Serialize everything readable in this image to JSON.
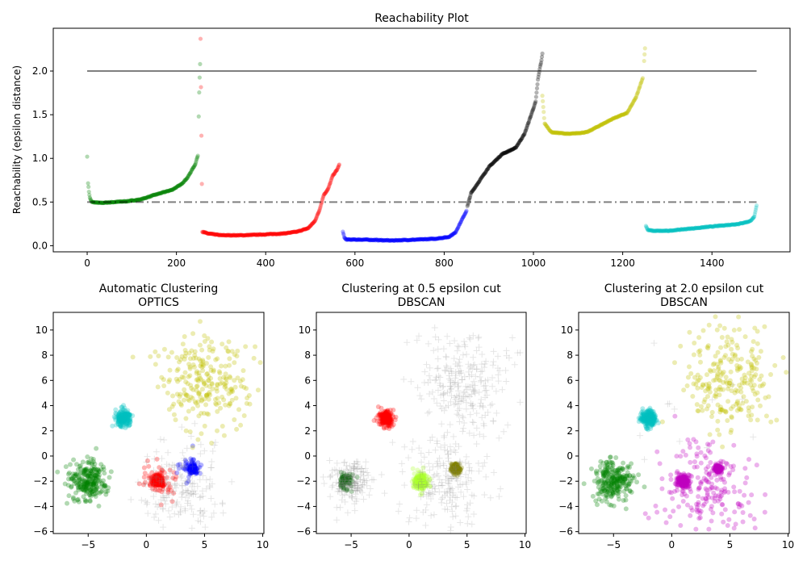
{
  "chart_data": [
    {
      "type": "scatter",
      "title": "Reachability Plot",
      "xlabel": "",
      "ylabel": "Reachability (epsilon distance)",
      "xlim": [
        -76,
        1575
      ],
      "ylim": [
        -0.07,
        2.49
      ],
      "xticks": [
        0,
        200,
        400,
        600,
        800,
        1000,
        1200,
        1400
      ],
      "yticks": [
        0.0,
        0.5,
        1.0,
        1.5,
        2.0
      ],
      "hlines": [
        {
          "y": 2.0,
          "style": "solid"
        },
        {
          "y": 0.5,
          "style": "dashdot"
        }
      ],
      "series": [
        {
          "color": "#008000",
          "x": [
            0,
            2,
            4,
            6,
            10,
            30,
            60,
            90,
            120,
            150,
            170,
            190,
            210,
            225,
            235,
            242,
            246,
            248,
            250,
            251,
            252,
            253
          ],
          "y": [
            1.02,
            0.72,
            0.62,
            0.55,
            0.5,
            0.49,
            0.5,
            0.51,
            0.53,
            0.58,
            0.61,
            0.64,
            0.7,
            0.78,
            0.87,
            0.93,
            1.0,
            1.03,
            1.48,
            1.75,
            1.93,
            2.08
          ]
        },
        {
          "color": "#ff0000",
          "x": [
            254,
            258,
            270,
            300,
            350,
            400,
            440,
            470,
            495,
            510,
            520,
            530,
            540,
            550,
            560,
            565
          ],
          "y": [
            2.37,
            0.16,
            0.14,
            0.12,
            0.12,
            0.13,
            0.14,
            0.16,
            0.2,
            0.28,
            0.4,
            0.58,
            0.65,
            0.8,
            0.87,
            0.93
          ]
        },
        {
          "color": "#0000ff",
          "x": [
            573,
            576,
            580,
            620,
            680,
            740,
            780,
            810,
            825,
            835,
            845,
            850
          ],
          "y": [
            0.16,
            0.1,
            0.07,
            0.07,
            0.06,
            0.07,
            0.08,
            0.1,
            0.15,
            0.25,
            0.35,
            0.4
          ]
        },
        {
          "color": "#000000",
          "x": [
            852,
            860,
            880,
            900,
            930,
            960,
            980,
            995,
            1005,
            1010,
            1015,
            1018,
            1020
          ],
          "y": [
            0.45,
            0.6,
            0.75,
            0.9,
            1.05,
            1.12,
            1.28,
            1.5,
            1.65,
            1.9,
            2.05,
            2.12,
            2.2
          ]
        },
        {
          "color": "#bfbf00",
          "x": [
            1020,
            1025,
            1040,
            1080,
            1120,
            1150,
            1180,
            1210,
            1230,
            1240,
            1245,
            1248,
            1250
          ],
          "y": [
            1.72,
            1.4,
            1.3,
            1.28,
            1.3,
            1.38,
            1.46,
            1.52,
            1.7,
            1.85,
            1.92,
            2.12,
            2.26
          ]
        },
        {
          "color": "#00bfbf",
          "x": [
            1252,
            1256,
            1270,
            1300,
            1340,
            1380,
            1420,
            1460,
            1485,
            1495,
            1500
          ],
          "y": [
            0.23,
            0.18,
            0.17,
            0.17,
            0.19,
            0.21,
            0.23,
            0.25,
            0.28,
            0.33,
            0.46
          ]
        }
      ]
    },
    {
      "type": "scatter",
      "title": "Automatic Clustering\nOPTICS",
      "xlim": [
        -8,
        10.1
      ],
      "ylim": [
        -6.15,
        11.4
      ],
      "xticks": [
        -5,
        0,
        5,
        10
      ],
      "yticks": [
        -6,
        -4,
        -2,
        0,
        2,
        4,
        6,
        8,
        10
      ],
      "clusters": [
        {
          "color": "#008000",
          "center": [
            -5,
            -2
          ],
          "std": 0.8,
          "n": 250
        },
        {
          "color": "#00bfbf",
          "center": [
            -2,
            3
          ],
          "std": 0.3,
          "n": 200
        },
        {
          "color": "#ff0000",
          "center": [
            1,
            -2
          ],
          "std": 0.25,
          "n": 200
        },
        {
          "color": "#ff0000",
          "center": [
            1,
            -2
          ],
          "std": 0.8,
          "n": 50
        },
        {
          "color": "#0000ff",
          "center": [
            4,
            -1
          ],
          "std": 0.15,
          "n": 150
        },
        {
          "color": "#0000ff",
          "center": [
            3.7,
            -1
          ],
          "std": 0.5,
          "n": 40
        },
        {
          "color": "#bfbf00",
          "center": [
            5,
            6
          ],
          "std": 2,
          "n": 250
        },
        {
          "color": "#808080",
          "center": [
            3,
            -2.5
          ],
          "std": 1.8,
          "n": 180,
          "marker": "+"
        }
      ]
    },
    {
      "type": "scatter",
      "title": "Clustering at 0.5 epsilon cut\nDBSCAN",
      "xlim": [
        -8,
        10.1
      ],
      "ylim": [
        -6.15,
        11.4
      ],
      "xticks": [
        -5,
        0,
        5,
        10
      ],
      "yticks": [
        -6,
        -4,
        -2,
        0,
        2,
        4,
        6,
        8,
        10
      ],
      "clusters": [
        {
          "color": "#006400",
          "center": [
            -5.5,
            -2
          ],
          "std": 0.3,
          "n": 80
        },
        {
          "color": "#ff0000",
          "center": [
            -2,
            3
          ],
          "std": 0.3,
          "n": 200
        },
        {
          "color": "#adff2f",
          "center": [
            1,
            -2
          ],
          "std": 0.3,
          "n": 200
        },
        {
          "color": "#808000",
          "center": [
            4,
            -1
          ],
          "std": 0.2,
          "n": 150
        },
        {
          "color": "#808080",
          "center": [
            -5,
            -2
          ],
          "std": 0.9,
          "n": 170,
          "marker": "+"
        },
        {
          "color": "#808080",
          "center": [
            5,
            6
          ],
          "std": 2,
          "n": 250,
          "marker": "+"
        },
        {
          "color": "#808080",
          "center": [
            3,
            -2.5
          ],
          "std": 1.8,
          "n": 200,
          "marker": "+"
        }
      ]
    },
    {
      "type": "scatter",
      "title": "Clustering at 2.0 epsilon cut\nDBSCAN",
      "xlim": [
        -8,
        10.1
      ],
      "ylim": [
        -6.15,
        11.4
      ],
      "xticks": [
        -5,
        0,
        5,
        10
      ],
      "yticks": [
        -6,
        -4,
        -2,
        0,
        2,
        4,
        6,
        8,
        10
      ],
      "clusters": [
        {
          "color": "#008000",
          "center": [
            -5,
            -2
          ],
          "std": 0.8,
          "n": 250
        },
        {
          "color": "#00bfbf",
          "center": [
            -2,
            3
          ],
          "std": 0.3,
          "n": 200
        },
        {
          "color": "#bfbf00",
          "center": [
            5,
            6
          ],
          "std": 2,
          "n": 240
        },
        {
          "color": "#bf00bf",
          "center": [
            1,
            -2
          ],
          "std": 0.25,
          "n": 200
        },
        {
          "color": "#bf00bf",
          "center": [
            4,
            -1
          ],
          "std": 0.15,
          "n": 150
        },
        {
          "color": "#bf00bf",
          "center": [
            3,
            -2.5
          ],
          "std": 1.8,
          "n": 200
        },
        {
          "color": "#808080",
          "center": [
            2,
            3
          ],
          "std": 3,
          "n": 12,
          "marker": "+"
        }
      ]
    }
  ]
}
